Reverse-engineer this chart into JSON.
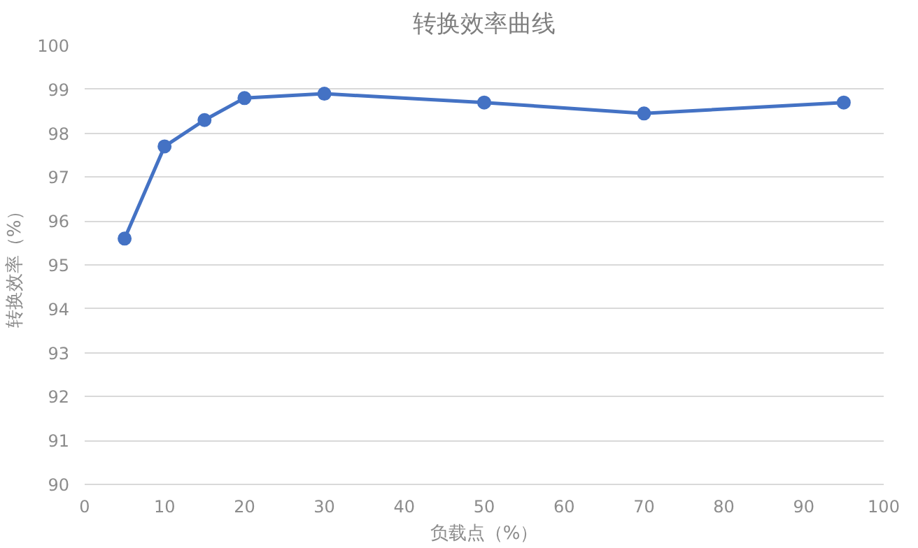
{
  "chart_data": {
    "type": "line",
    "title": "转换效率曲线",
    "xlabel": "负载点（%）",
    "ylabel": "转换效率（%）",
    "x": [
      5,
      10,
      15,
      20,
      30,
      50,
      70,
      95
    ],
    "series": [
      {
        "color": "#4472c4",
        "values": [
          95.6,
          97.7,
          98.3,
          98.8,
          98.9,
          98.7,
          98.45,
          98.7
        ]
      }
    ],
    "xlim": [
      0,
      100
    ],
    "xticks": [
      0,
      10,
      20,
      30,
      40,
      50,
      60,
      70,
      80,
      90,
      100
    ],
    "ylim": [
      90,
      100
    ],
    "yticks": [
      90,
      91,
      92,
      93,
      94,
      95,
      96,
      97,
      98,
      99,
      100
    ],
    "grid": "y",
    "marker": "circle",
    "line_style": "solid"
  }
}
